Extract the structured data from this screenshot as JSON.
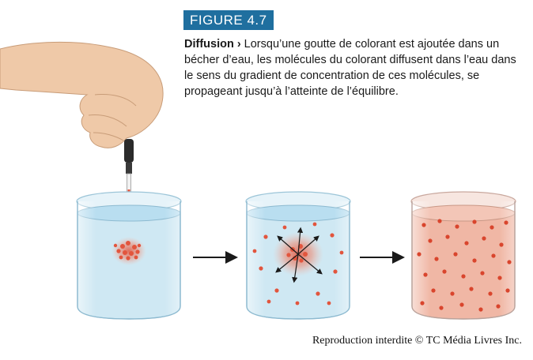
{
  "figure": {
    "label": "FIGURE 4.7",
    "term": "Diffusion",
    "chevron": "›",
    "text": "Lorsqu’une goutte de colorant est ajoutée dans un bécher d’eau, les molécules du colorant diffusent dans l’eau dans le sens du gradient de concentration de ces molécules, se propageant jusqu’à l’atteinte de l’équilibre.",
    "credit": "Reproduction interdite © TC Média Livres Inc."
  },
  "colors": {
    "badge": "#1f6f9f",
    "water": "#cfe8f3",
    "dye": "#e2553d",
    "equilibrium_water": "#f0b7a5"
  },
  "stages": [
    {
      "name": "drop-added"
    },
    {
      "name": "diffusing"
    },
    {
      "name": "equilibrium"
    }
  ]
}
